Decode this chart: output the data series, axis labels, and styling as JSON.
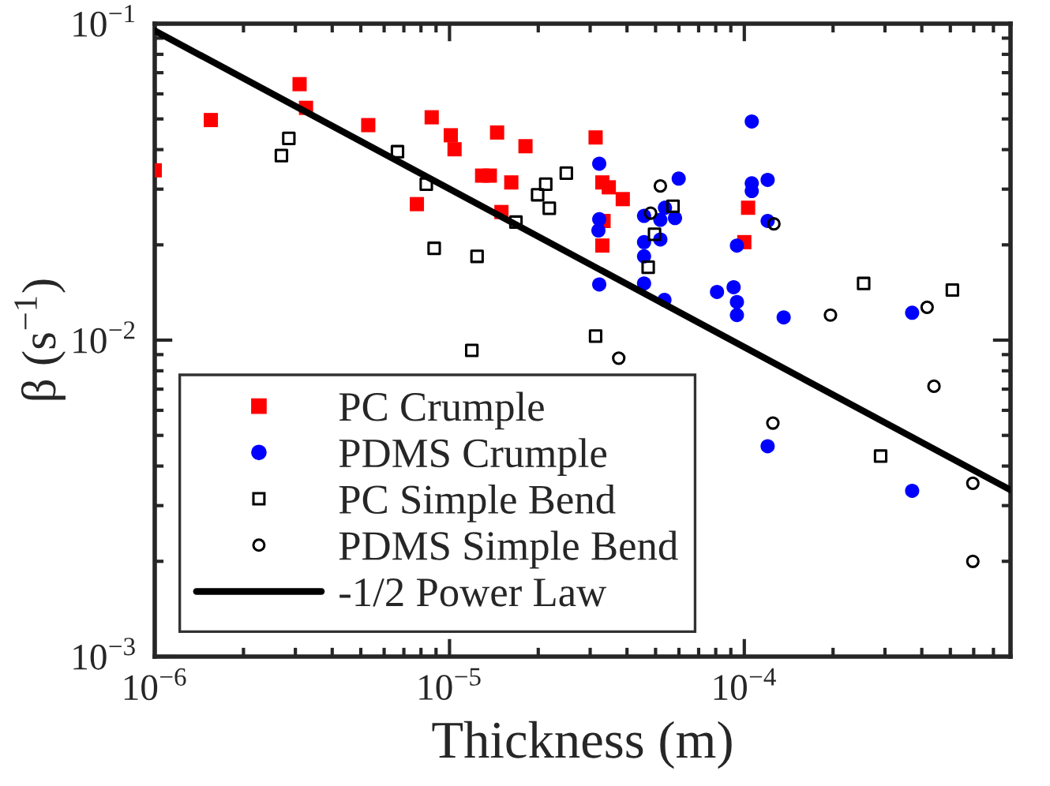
{
  "chart_data": {
    "type": "scatter",
    "xlabel": "Thickness (m)",
    "ylabel": "β (s$^{−1}$)",
    "log": "xy",
    "xlim": [
      1e-06,
      0.0008
    ],
    "ylim": [
      0.001,
      0.1
    ],
    "xticks": [
      {
        "value": 1e-06,
        "label": "10$^{−6}$"
      },
      {
        "value": 1e-05,
        "label": "10$^{−5}$"
      },
      {
        "value": 0.0001,
        "label": "10$^{−4}$"
      }
    ],
    "yticks": [
      {
        "value": 0.001,
        "label": "10$^{−3}$"
      },
      {
        "value": 0.01,
        "label": "10$^{−2}$"
      },
      {
        "value": 0.1,
        "label": "10$^{−1}$"
      }
    ],
    "grid": false,
    "legend": "bottom left",
    "series": [
      {
        "name": "PC Crumple",
        "type": "scatter",
        "marker": "square",
        "color": "#ff0000",
        "x": [
          1e-06,
          1.55e-06,
          3.1e-06,
          3.26e-06,
          5.3e-06,
          8.7e-06,
          1.01e-05,
          1.04e-05,
          7.75e-06,
          1.29e-05,
          1.37e-05,
          1.45e-05,
          1.62e-05,
          1.5e-05,
          1.81e-05,
          3.13e-05,
          3.3e-05,
          3.47e-05,
          3.33e-05,
          3.3e-05,
          3.87e-05,
          0.000103,
          0.0001
        ],
        "values": [
          0.0344,
          0.0496,
          0.0644,
          0.0542,
          0.0478,
          0.0506,
          0.0444,
          0.0401,
          0.0269,
          0.0331,
          0.0331,
          0.0453,
          0.0315,
          0.0254,
          0.041,
          0.0437,
          0.0315,
          0.0304,
          0.0238,
          0.0199,
          0.0279,
          0.0262,
          0.0204
        ]
      },
      {
        "name": "PDMS Crumple",
        "type": "scatter",
        "marker": "circle",
        "color": "#0000ff",
        "x": [
          3.22e-05,
          3.22e-05,
          3.2e-05,
          3.22e-05,
          0.000106,
          5.99e-05,
          0.000106,
          0.000106,
          0.00012,
          4.57e-05,
          5.19e-05,
          5.38e-05,
          5.82e-05,
          4.57e-05,
          5.19e-05,
          4.57e-05,
          4.57e-05,
          5.36e-05,
          9.44e-05,
          0.00012,
          8.08e-05,
          9.2e-05,
          9.44e-05,
          9.44e-05,
          0.000136,
          0.000371,
          0.00012,
          0.000371
        ],
        "values": [
          0.0361,
          0.0241,
          0.0222,
          0.015,
          0.0491,
          0.0324,
          0.0313,
          0.0296,
          0.0321,
          0.0247,
          0.024,
          0.0262,
          0.0243,
          0.0204,
          0.0208,
          0.0184,
          0.0151,
          0.0134,
          0.0199,
          0.0238,
          0.0142,
          0.0147,
          0.0132,
          0.012,
          0.0118,
          0.0122,
          0.00462,
          0.00334
        ]
      },
      {
        "name": "PC Simple Bend",
        "type": "scatter",
        "marker": "square",
        "color": "#000000",
        "x": [
          2.69e-06,
          2.85e-06,
          6.66e-06,
          8.34e-06,
          8.87e-06,
          1.24e-05,
          1.19e-05,
          1.68e-05,
          1.99e-05,
          2.12e-05,
          2.18e-05,
          2.49e-05,
          3.13e-05,
          5.73e-05,
          4.96e-05,
          4.72e-05,
          0.000254,
          0.000508,
          0.00029
        ],
        "values": [
          0.0383,
          0.0434,
          0.0394,
          0.0311,
          0.0195,
          0.0184,
          0.00928,
          0.0236,
          0.0288,
          0.0311,
          0.0261,
          0.0337,
          0.0103,
          0.0265,
          0.0216,
          0.017,
          0.0151,
          0.0144,
          0.0043
        ]
      },
      {
        "name": "PDMS Simple Bend",
        "type": "scatter",
        "marker": "circle",
        "color": "#000000",
        "x": [
          5.19e-05,
          4.81e-05,
          0.000126,
          3.75e-05,
          0.000196,
          0.000417,
          0.00044,
          0.000125,
          0.000596,
          0.000596
        ],
        "values": [
          0.0307,
          0.0252,
          0.0233,
          0.00877,
          0.012,
          0.0127,
          0.00715,
          0.00547,
          0.00353,
          0.002
        ]
      },
      {
        "name": "-1/2 Power Law",
        "type": "line",
        "marker": "none",
        "line_style": "solid",
        "color": "#000000",
        "x": [
          1e-06,
          0.0008
        ],
        "values": [
          0.095,
          0.00336
        ]
      }
    ]
  }
}
